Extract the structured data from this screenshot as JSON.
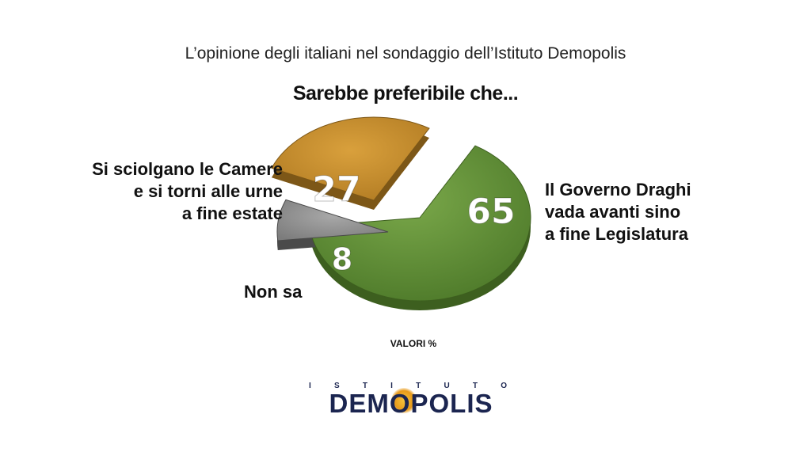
{
  "header": {
    "title": "L’opinione degli italiani nel sondaggio dell’Istituto Demopolis",
    "subtitle": "Sarebbe preferibile che..."
  },
  "chart_data": {
    "type": "pie",
    "slices": [
      {
        "label_lines": [
          "Il Governo Draghi",
          "vada avanti sino",
          "a fine Legislatura"
        ],
        "value": 65,
        "color": "#5e8a35"
      },
      {
        "label_lines": [
          "Non sa"
        ],
        "value": 8,
        "color": "#8e8e8e"
      },
      {
        "label_lines": [
          "Si sciolgano le Camere",
          "e si torni alle urne",
          "a fine estate"
        ],
        "value": 27,
        "color": "#c48a2c"
      }
    ],
    "unit_note": "VALORI %"
  },
  "logo": {
    "top_text": "ISTITUTO",
    "main_text": "DEMOPOLIS",
    "colors": {
      "text": "#1b2550",
      "sun": "#e89a1a"
    }
  }
}
